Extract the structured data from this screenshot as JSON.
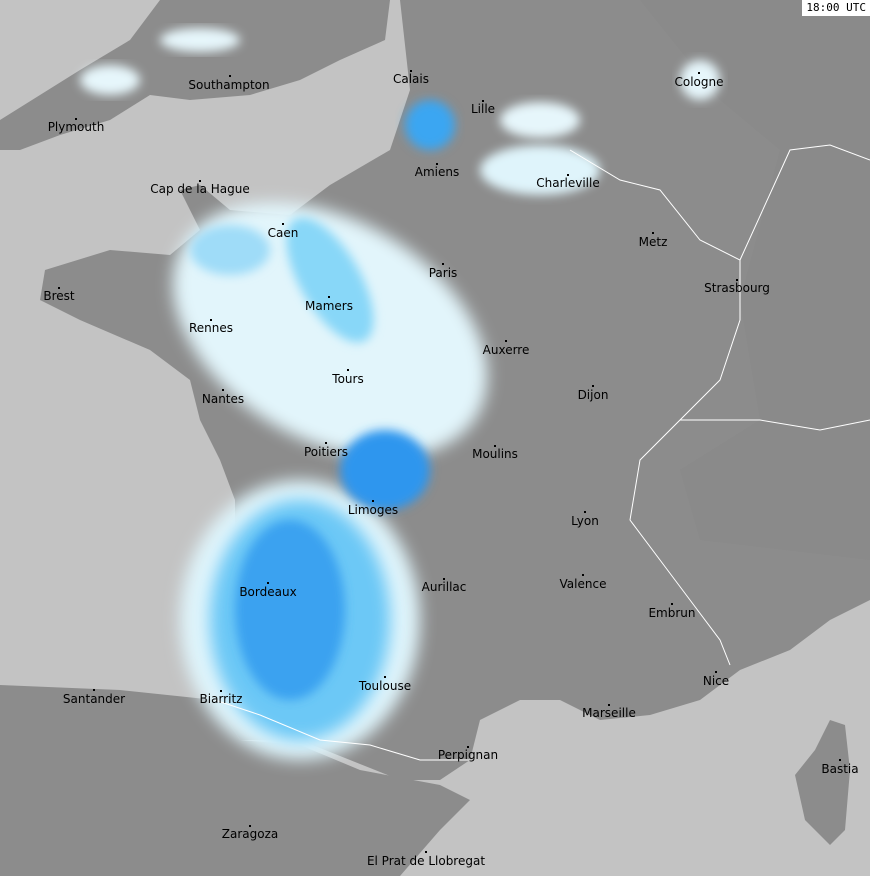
{
  "timestamp": "18:00 UTC",
  "colors": {
    "sea": "#c3c3c3",
    "land": "#8c8c8c",
    "land_light": "#a0a0a0",
    "radar_light": "#dff4fb",
    "radar_mid": "#7ed3f7",
    "radar_strong": "#2e9cf0",
    "borders": "#ffffff"
  },
  "cities": [
    "Southampton",
    "Plymouth",
    "Calais",
    "Lille",
    "Cologne",
    "Amiens",
    "Charleville",
    "Cap de la Hague",
    "Caen",
    "Metz",
    "Paris",
    "Brest",
    "Strasbourg",
    "Mamers",
    "Rennes",
    "Auxerre",
    "Tours",
    "Dijon",
    "Nantes",
    "Poitiers",
    "Moulins",
    "Limoges",
    "Lyon",
    "Aurillac",
    "Valence",
    "Bordeaux",
    "Embrun",
    "Toulouse",
    "Nice",
    "Santander",
    "Biarritz",
    "Marseille",
    "Perpignan",
    "Bastia",
    "Zaragoza",
    "El Prat de Llobregat"
  ]
}
